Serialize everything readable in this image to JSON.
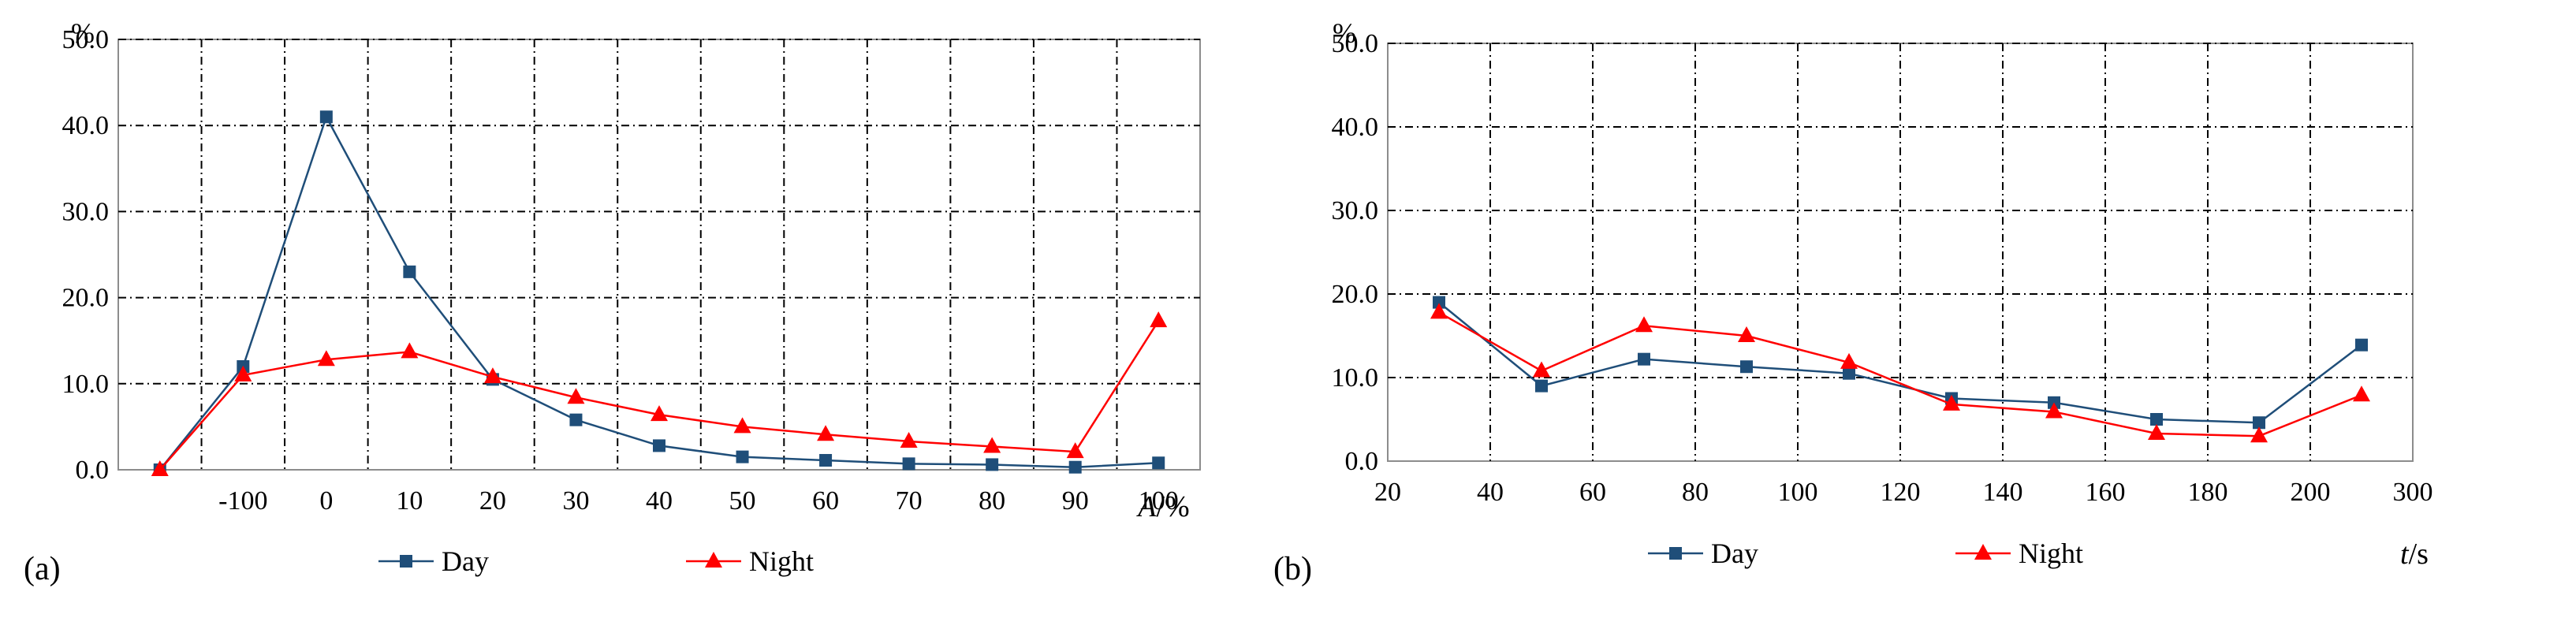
{
  "colors": {
    "day": "#1f4e79",
    "night": "#ff0000",
    "grid": "#000000",
    "frame": "#8c8c8c"
  },
  "chart_data": [
    {
      "type": "line",
      "panel_label": "(a)",
      "unit_label": "%",
      "xlabel": "A/%",
      "xlabel_main": "A",
      "xlabel_unit": "/%",
      "x_ticks": [
        "-100",
        "0",
        "10",
        "20",
        "30",
        "40",
        "50",
        "60",
        "70",
        "80",
        "90",
        "100"
      ],
      "y_ticks": [
        "0.0",
        "10.0",
        "20.0",
        "30.0",
        "40.0",
        "50.0"
      ],
      "ylim": [
        0,
        50
      ],
      "grid": true,
      "legend_position": "bottom",
      "series": [
        {
          "name": "Day",
          "marker": "square",
          "color_key": "day",
          "values": [
            0.0,
            12.0,
            41.0,
            23.0,
            10.5,
            5.8,
            2.8,
            1.5,
            1.1,
            0.7,
            0.6,
            0.3,
            0.8
          ]
        },
        {
          "name": "Night",
          "marker": "triangle",
          "color_key": "night",
          "values": [
            0.0,
            11.0,
            12.8,
            13.7,
            10.8,
            8.4,
            6.4,
            5.0,
            4.1,
            3.3,
            2.7,
            2.1,
            17.3
          ]
        }
      ]
    },
    {
      "type": "line",
      "panel_label": "(b)",
      "unit_label": "%",
      "xlabel": "t/s",
      "xlabel_main": "t",
      "xlabel_unit": "/s",
      "x_ticks": [
        "20",
        "40",
        "60",
        "80",
        "100",
        "120",
        "140",
        "160",
        "180",
        "200",
        "300"
      ],
      "y_ticks": [
        "0.0",
        "10.0",
        "20.0",
        "30.0",
        "40.0",
        "50.0"
      ],
      "ylim": [
        0,
        50
      ],
      "grid": true,
      "legend_position": "bottom",
      "series": [
        {
          "name": "Day",
          "marker": "square",
          "color_key": "day",
          "values": [
            19.0,
            9.0,
            12.2,
            11.3,
            10.5,
            7.5,
            7.0,
            5.0,
            4.6,
            13.9
          ]
        },
        {
          "name": "Night",
          "marker": "triangle",
          "color_key": "night",
          "values": [
            17.8,
            10.8,
            16.2,
            15.0,
            11.8,
            6.8,
            5.9,
            3.3,
            3.0,
            7.9
          ]
        }
      ]
    }
  ]
}
